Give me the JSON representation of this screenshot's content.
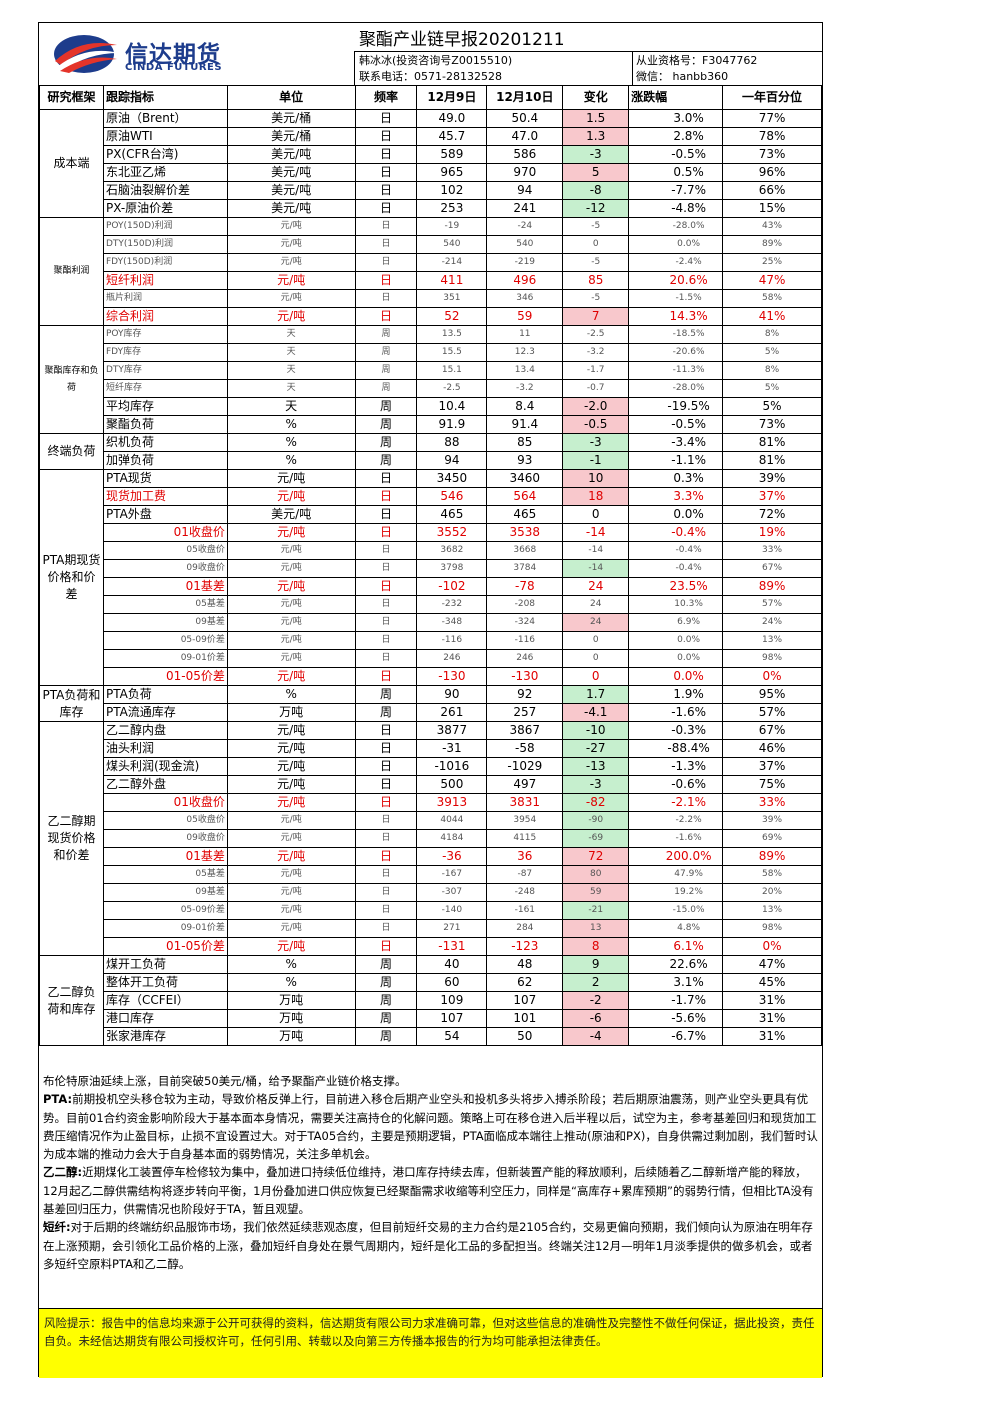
{
  "header": {
    "logo_cn": "信达期货",
    "logo_en": "CINDA FUTURES",
    "title": "聚酯产业链早报20201211",
    "analyst": "韩冰冰(投资咨询号Z0015510)",
    "phone": "联系电话：0571-28132528",
    "qualification": "从业资格号：F3047762",
    "wechat": "微信：  hanbb360"
  },
  "columns": [
    "研究框架",
    "跟踪指标",
    "单位",
    "频率",
    "12月9日",
    "12月10日",
    "变化",
    "涨跌幅",
    "一年百分位"
  ],
  "colors": {
    "pos_bg": "#f8c8cc",
    "neg_bg": "#c6efce",
    "risk_bg": "#ffff00",
    "brand": "#1d3c8c",
    "highlight_text": "#e00000"
  },
  "sections": [
    {
      "category": "成本端",
      "rows": [
        {
          "name": "原油（Brent）",
          "unit": "美元/桶",
          "freq": "日",
          "d1": "49.0",
          "d2": "50.4",
          "chg": "1.5",
          "pct": "3.0%",
          "pctl": "77%",
          "style": "normal",
          "chg_sign": "pos"
        },
        {
          "name": "原油WTI",
          "unit": "美元/桶",
          "freq": "日",
          "d1": "45.7",
          "d2": "47.0",
          "chg": "1.3",
          "pct": "2.8%",
          "pctl": "78%",
          "style": "normal",
          "chg_sign": "pos"
        },
        {
          "name": "PX(CFR台湾)",
          "unit": "美元/吨",
          "freq": "日",
          "d1": "589",
          "d2": "586",
          "chg": "-3",
          "pct": "-0.5%",
          "pctl": "73%",
          "style": "normal",
          "chg_sign": "neg"
        },
        {
          "name": "东北亚乙烯",
          "unit": "美元/吨",
          "freq": "日",
          "d1": "965",
          "d2": "970",
          "chg": "5",
          "pct": "0.5%",
          "pctl": "96%",
          "style": "normal",
          "chg_sign": "pos"
        },
        {
          "name": "石脑油裂解价差",
          "unit": "美元/吨",
          "freq": "日",
          "d1": "102",
          "d2": "94",
          "chg": "-8",
          "pct": "-7.7%",
          "pctl": "66%",
          "style": "normal",
          "chg_sign": "neg"
        },
        {
          "name": "PX-原油价差",
          "unit": "美元/吨",
          "freq": "日",
          "d1": "253",
          "d2": "241",
          "chg": "-12",
          "pct": "-4.8%",
          "pctl": "15%",
          "style": "normal",
          "chg_sign": "neg"
        }
      ]
    },
    {
      "category": "聚酯利润",
      "rows": [
        {
          "name": "POY(150D)利润",
          "unit": "元/吨",
          "freq": "日",
          "d1": "-19",
          "d2": "-24",
          "chg": "-5",
          "pct": "-28.0%",
          "pctl": "43%",
          "style": "small",
          "chg_sign": "none"
        },
        {
          "name": "DTY(150D)利润",
          "unit": "元/吨",
          "freq": "日",
          "d1": "540",
          "d2": "540",
          "chg": "0",
          "pct": "0.0%",
          "pctl": "89%",
          "style": "small",
          "chg_sign": "none"
        },
        {
          "name": "FDY(150D)利润",
          "unit": "元/吨",
          "freq": "日",
          "d1": "-214",
          "d2": "-219",
          "chg": "-5",
          "pct": "-2.4%",
          "pctl": "25%",
          "style": "small",
          "chg_sign": "none"
        },
        {
          "name": "短纤利润",
          "unit": "元/吨",
          "freq": "日",
          "d1": "411",
          "d2": "496",
          "chg": "85",
          "pct": "20.6%",
          "pctl": "47%",
          "style": "red-left",
          "chg_sign": "none"
        },
        {
          "name": "瓶片利润",
          "unit": "元/吨",
          "freq": "日",
          "d1": "351",
          "d2": "346",
          "chg": "-5",
          "pct": "-1.5%",
          "pctl": "58%",
          "style": "small",
          "chg_sign": "none"
        },
        {
          "name": "综合利润",
          "unit": "元/吨",
          "freq": "日",
          "d1": "52",
          "d2": "59",
          "chg": "7",
          "pct": "14.3%",
          "pctl": "41%",
          "style": "red-left",
          "chg_sign": "pos"
        }
      ]
    },
    {
      "category": "聚酯库存和负荷",
      "rows": [
        {
          "name": "POY库存",
          "unit": "天",
          "freq": "周",
          "d1": "13.5",
          "d2": "11",
          "chg": "-2.5",
          "pct": "-18.5%",
          "pctl": "8%",
          "style": "small",
          "chg_sign": "none"
        },
        {
          "name": "FDY库存",
          "unit": "天",
          "freq": "周",
          "d1": "15.5",
          "d2": "12.3",
          "chg": "-3.2",
          "pct": "-20.6%",
          "pctl": "5%",
          "style": "small",
          "chg_sign": "none"
        },
        {
          "name": "DTY库存",
          "unit": "天",
          "freq": "周",
          "d1": "15.1",
          "d2": "13.4",
          "chg": "-1.7",
          "pct": "-11.3%",
          "pctl": "8%",
          "style": "small",
          "chg_sign": "none"
        },
        {
          "name": "短纤库存",
          "unit": "天",
          "freq": "周",
          "d1": "-2.5",
          "d2": "-3.2",
          "chg": "-0.7",
          "pct": "-28.0%",
          "pctl": "5%",
          "style": "small",
          "chg_sign": "none"
        },
        {
          "name": "平均库存",
          "unit": "天",
          "freq": "周",
          "d1": "10.4",
          "d2": "8.4",
          "chg": "-2.0",
          "pct": "-19.5%",
          "pctl": "5%",
          "style": "normal",
          "chg_sign": "pos"
        },
        {
          "name": "聚酯负荷",
          "unit": "%",
          "freq": "周",
          "d1": "91.9",
          "d2": "91.4",
          "chg": "-0.5",
          "pct": "-0.5%",
          "pctl": "73%",
          "style": "normal",
          "chg_sign": "pos"
        }
      ]
    },
    {
      "category": "终端负荷",
      "rows": [
        {
          "name": "织机负荷",
          "unit": "%",
          "freq": "周",
          "d1": "88",
          "d2": "85",
          "chg": "-3",
          "pct": "-3.4%",
          "pctl": "81%",
          "style": "normal",
          "chg_sign": "neg"
        },
        {
          "name": "加弹负荷",
          "unit": "%",
          "freq": "周",
          "d1": "94",
          "d2": "93",
          "chg": "-1",
          "pct": "-1.1%",
          "pctl": "81%",
          "style": "normal",
          "chg_sign": "neg"
        }
      ]
    },
    {
      "category": "PTA期现货价格和价差",
      "rows": [
        {
          "name": "PTA现货",
          "unit": "元/吨",
          "freq": "日",
          "d1": "3450",
          "d2": "3460",
          "chg": "10",
          "pct": "0.3%",
          "pctl": "39%",
          "style": "normal",
          "chg_sign": "pos"
        },
        {
          "name": "现货加工费",
          "unit": "元/吨",
          "freq": "日",
          "d1": "546",
          "d2": "564",
          "chg": "18",
          "pct": "3.3%",
          "pctl": "37%",
          "style": "red-left",
          "chg_sign": "pos"
        },
        {
          "name": "PTA外盘",
          "unit": "美元/吨",
          "freq": "日",
          "d1": "465",
          "d2": "465",
          "chg": "0",
          "pct": "0.0%",
          "pctl": "72%",
          "style": "normal",
          "chg_sign": "none"
        },
        {
          "name": "01收盘价",
          "unit": "元/吨",
          "freq": "日",
          "d1": "3552",
          "d2": "3538",
          "chg": "-14",
          "pct": "-0.4%",
          "pctl": "19%",
          "style": "red-right",
          "chg_sign": "none"
        },
        {
          "name": "05收盘价",
          "unit": "元/吨",
          "freq": "日",
          "d1": "3682",
          "d2": "3668",
          "chg": "-14",
          "pct": "-0.4%",
          "pctl": "33%",
          "style": "small-right",
          "chg_sign": "none"
        },
        {
          "name": "09收盘价",
          "unit": "元/吨",
          "freq": "日",
          "d1": "3798",
          "d2": "3784",
          "chg": "-14",
          "pct": "-0.4%",
          "pctl": "67%",
          "style": "small-right",
          "chg_sign": "neg"
        },
        {
          "name": "01基差",
          "unit": "元/吨",
          "freq": "日",
          "d1": "-102",
          "d2": "-78",
          "chg": "24",
          "pct": "23.5%",
          "pctl": "89%",
          "style": "red-right",
          "chg_sign": "none"
        },
        {
          "name": "05基差",
          "unit": "元/吨",
          "freq": "日",
          "d1": "-232",
          "d2": "-208",
          "chg": "24",
          "pct": "10.3%",
          "pctl": "57%",
          "style": "small-right",
          "chg_sign": "none"
        },
        {
          "name": "09基差",
          "unit": "元/吨",
          "freq": "日",
          "d1": "-348",
          "d2": "-324",
          "chg": "24",
          "pct": "6.9%",
          "pctl": "24%",
          "style": "small-right",
          "chg_sign": "pos"
        },
        {
          "name": "05-09价差",
          "unit": "元/吨",
          "freq": "日",
          "d1": "-116",
          "d2": "-116",
          "chg": "0",
          "pct": "0.0%",
          "pctl": "13%",
          "style": "small-right",
          "chg_sign": "none"
        },
        {
          "name": "09-01价差",
          "unit": "元/吨",
          "freq": "日",
          "d1": "246",
          "d2": "246",
          "chg": "0",
          "pct": "0.0%",
          "pctl": "98%",
          "style": "small-right",
          "chg_sign": "none"
        },
        {
          "name": "01-05价差",
          "unit": "元/吨",
          "freq": "日",
          "d1": "-130",
          "d2": "-130",
          "chg": "0",
          "pct": "0.0%",
          "pctl": "0%",
          "style": "red-right",
          "chg_sign": "none"
        }
      ]
    },
    {
      "category": "PTA负荷和库存",
      "rows": [
        {
          "name": "PTA负荷",
          "unit": "%",
          "freq": "周",
          "d1": "90",
          "d2": "92",
          "chg": "1.7",
          "pct": "1.9%",
          "pctl": "95%",
          "style": "normal",
          "chg_sign": "neg"
        },
        {
          "name": "PTA流通库存",
          "unit": "万吨",
          "freq": "周",
          "d1": "261",
          "d2": "257",
          "chg": "-4.1",
          "pct": "-1.6%",
          "pctl": "57%",
          "style": "normal",
          "chg_sign": "pos"
        }
      ]
    },
    {
      "category": "乙二醇期现货价格和价差",
      "rows": [
        {
          "name": "乙二醇内盘",
          "unit": "元/吨",
          "freq": "日",
          "d1": "3877",
          "d2": "3867",
          "chg": "-10",
          "pct": "-0.3%",
          "pctl": "67%",
          "style": "normal",
          "chg_sign": "neg"
        },
        {
          "name": "油头利润",
          "unit": "元/吨",
          "freq": "日",
          "d1": "-31",
          "d2": "-58",
          "chg": "-27",
          "pct": "-88.4%",
          "pctl": "46%",
          "style": "normal",
          "chg_sign": "neg"
        },
        {
          "name": "煤头利润(现金流)",
          "unit": "元/吨",
          "freq": "日",
          "d1": "-1016",
          "d2": "-1029",
          "chg": "-13",
          "pct": "-1.3%",
          "pctl": "37%",
          "style": "normal",
          "chg_sign": "neg"
        },
        {
          "name": "乙二醇外盘",
          "unit": "元/吨",
          "freq": "日",
          "d1": "500",
          "d2": "497",
          "chg": "-3",
          "pct": "-0.6%",
          "pctl": "75%",
          "style": "normal",
          "chg_sign": "neg"
        },
        {
          "name": "01收盘价",
          "unit": "元/吨",
          "freq": "日",
          "d1": "3913",
          "d2": "3831",
          "chg": "-82",
          "pct": "-2.1%",
          "pctl": "33%",
          "style": "red-right",
          "chg_sign": "neg"
        },
        {
          "name": "05收盘价",
          "unit": "元/吨",
          "freq": "日",
          "d1": "4044",
          "d2": "3954",
          "chg": "-90",
          "pct": "-2.2%",
          "pctl": "39%",
          "style": "small-right",
          "chg_sign": "neg"
        },
        {
          "name": "09收盘价",
          "unit": "元/吨",
          "freq": "日",
          "d1": "4184",
          "d2": "4115",
          "chg": "-69",
          "pct": "-1.6%",
          "pctl": "69%",
          "style": "small-right",
          "chg_sign": "neg"
        },
        {
          "name": "01基差",
          "unit": "元/吨",
          "freq": "日",
          "d1": "-36",
          "d2": "36",
          "chg": "72",
          "pct": "200.0%",
          "pctl": "89%",
          "style": "red-right",
          "chg_sign": "pos"
        },
        {
          "name": "05基差",
          "unit": "元/吨",
          "freq": "日",
          "d1": "-167",
          "d2": "-87",
          "chg": "80",
          "pct": "47.9%",
          "pctl": "58%",
          "style": "small-right",
          "chg_sign": "pos"
        },
        {
          "name": "09基差",
          "unit": "元/吨",
          "freq": "日",
          "d1": "-307",
          "d2": "-248",
          "chg": "59",
          "pct": "19.2%",
          "pctl": "20%",
          "style": "small-right",
          "chg_sign": "pos"
        },
        {
          "name": "05-09价差",
          "unit": "元/吨",
          "freq": "日",
          "d1": "-140",
          "d2": "-161",
          "chg": "-21",
          "pct": "-15.0%",
          "pctl": "13%",
          "style": "small-right",
          "chg_sign": "neg"
        },
        {
          "name": "09-01价差",
          "unit": "元/吨",
          "freq": "日",
          "d1": "271",
          "d2": "284",
          "chg": "13",
          "pct": "4.8%",
          "pctl": "98%",
          "style": "small-right",
          "chg_sign": "pos"
        },
        {
          "name": "01-05价差",
          "unit": "元/吨",
          "freq": "日",
          "d1": "-131",
          "d2": "-123",
          "chg": "8",
          "pct": "6.1%",
          "pctl": "0%",
          "style": "red-right",
          "chg_sign": "pos"
        }
      ]
    },
    {
      "category": "乙二醇负荷和库存",
      "rows": [
        {
          "name": "煤开工负荷",
          "unit": "%",
          "freq": "周",
          "d1": "40",
          "d2": "48",
          "chg": "9",
          "pct": "22.6%",
          "pctl": "47%",
          "style": "normal",
          "chg_sign": "neg"
        },
        {
          "name": "整体开工负荷",
          "unit": "%",
          "freq": "周",
          "d1": "60",
          "d2": "62",
          "chg": "2",
          "pct": "3.1%",
          "pctl": "45%",
          "style": "normal",
          "chg_sign": "neg"
        },
        {
          "name": "库存（CCFEI）",
          "unit": "万吨",
          "freq": "周",
          "d1": "109",
          "d2": "107",
          "chg": "-2",
          "pct": "-1.7%",
          "pctl": "31%",
          "style": "normal",
          "chg_sign": "pos"
        },
        {
          "name": "港口库存",
          "unit": "万吨",
          "freq": "周",
          "d1": "107",
          "d2": "101",
          "chg": "-6",
          "pct": "-5.6%",
          "pctl": "31%",
          "style": "normal",
          "chg_sign": "pos"
        },
        {
          "name": "张家港库存",
          "unit": "万吨",
          "freq": "周",
          "d1": "54",
          "d2": "50",
          "chg": "-4",
          "pct": "-6.7%",
          "pctl": "31%",
          "style": "normal",
          "chg_sign": "pos"
        }
      ]
    }
  ],
  "notes": [
    {
      "label": "",
      "text": "布伦特原油延续上涨，目前突破50美元/桶，给予聚酯产业链价格支撑。"
    },
    {
      "label": "PTA:",
      "text": "前期投机空头移仓较为主动，导致价格反弹上行，目前进入移仓后期产业空头和投机多头将步入搏杀阶段；若后期原油震荡，则产业空头更具有优势。目前01合约资金影响阶段大于基本面本身情况，需要关注高持仓的化解问题。策略上可在移仓进入后半程以后，试空为主，参考基差回归和现货加工费压缩情况作为止盈目标，止损不宜设置过大。对于TA05合约，主要是预期逻辑，PTA面临成本端往上推动(原油和PX)，自身供需过剩加剧，我们暂时认为成本端的推动力会大于自身基本面的弱势情况，关注多单机会。"
    },
    {
      "label": "乙二醇:",
      "text": "近期煤化工装置停车检修较为集中，叠加进口持续低位维持，港口库存持续去库，但新装置产能的释放顺利，后续随着乙二醇新增产能的释放，12月起乙二醇供需结构将逐步转向平衡，1月份叠加进口供应恢复已经聚酯需求收缩等利空压力，同样是“高库存+累库预期”的弱势行情，但相比TA没有基差回归压力，供需情况也阶段好于TA，暂且观望。"
    },
    {
      "label": "短纤:",
      "text": "对于后期的终端纺织品服饰市场，我们依然延续悲观态度，但目前短纤交易的主力合约是2105合约，交易更偏向预期，我们倾向认为原油在明年存在上涨预期，会引领化工品价格的上涨，叠加短纤自身处在景气周期内，短纤是化工品的多配担当。终端关注12月—明年1月淡季提供的做多机会，或者多短纤空原料PTA和乙二醇。"
    }
  ],
  "risk": "风险提示：报告中的信息均来源于公开可获得的资料，信达期货有限公司力求准确可靠，但对这些信息的准确性及完整性不做任何保证，据此投资，责任自负。未经信达期货有限公司授权许可，任何引用、转载以及向第三方传播本报告的行为均可能承担法律责任。"
}
